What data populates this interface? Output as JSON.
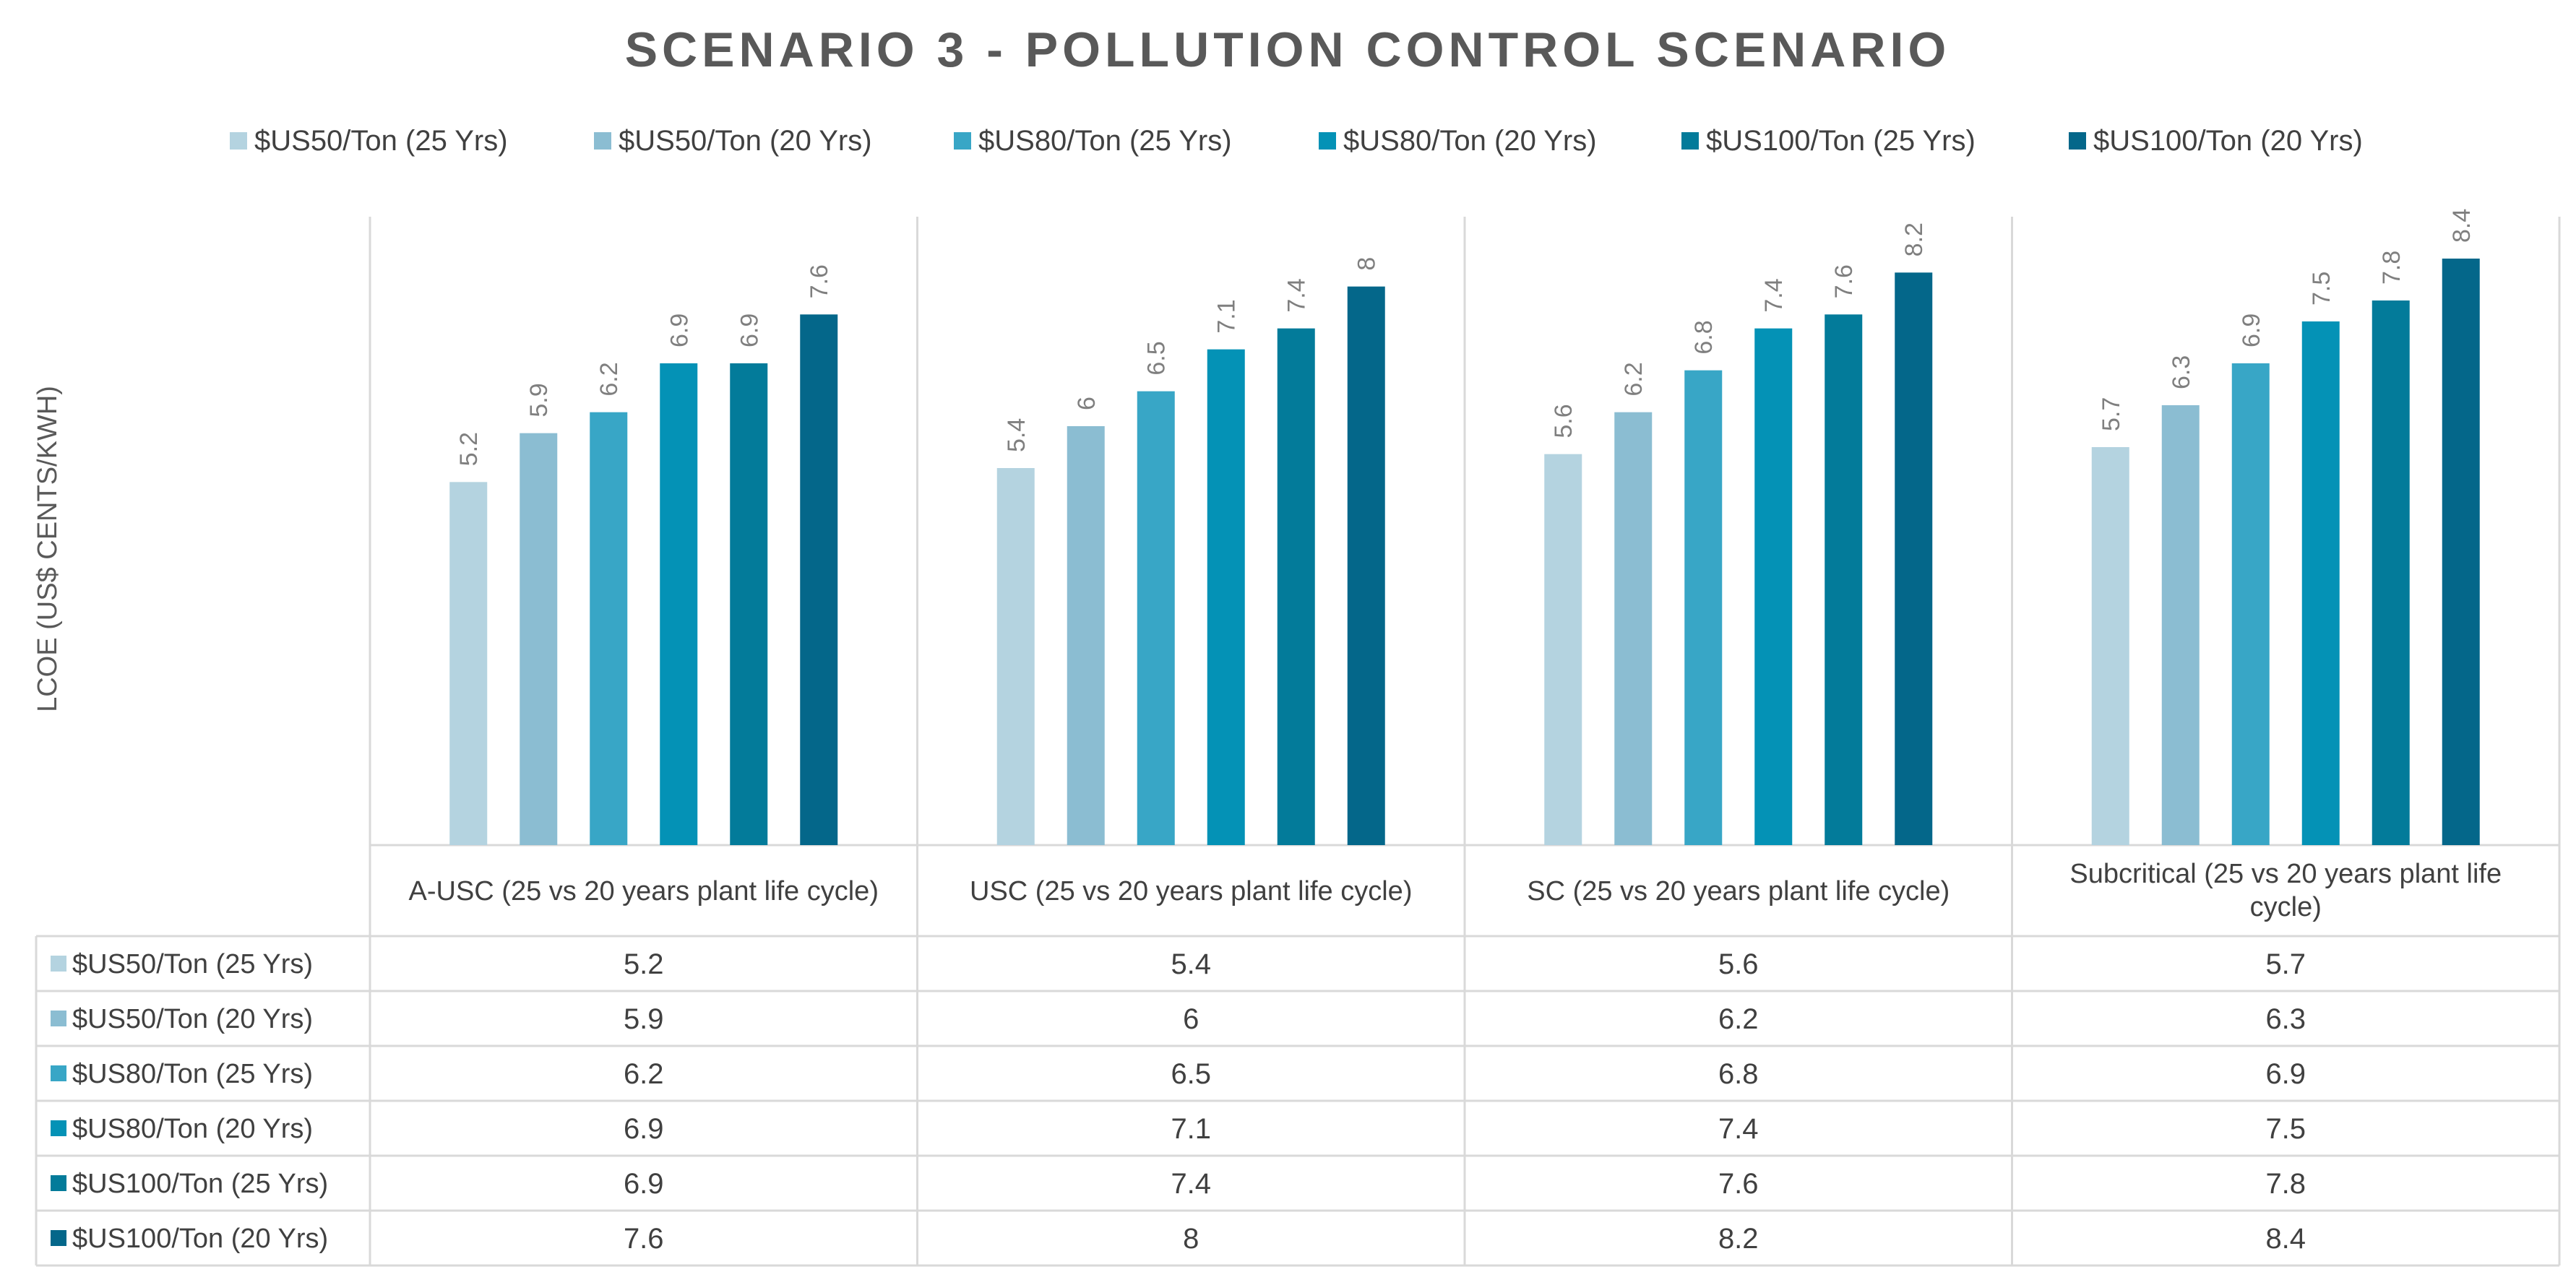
{
  "chart_data": {
    "type": "bar",
    "title": "SCENARIO 3 - POLLUTION CONTROL SCENARIO",
    "ylabel": "LCOE (US$ CENTS/KWH)",
    "xlabel": "",
    "ylim": [
      0,
      9
    ],
    "grid": false,
    "legend_position": "top",
    "categories": [
      "A-USC (25 vs 20 years plant life cycle)",
      "USC (25 vs 20 years plant life cycle)",
      "SC (25 vs 20 years plant life cycle)",
      "Subcritical (25 vs 20 years plant life cycle)"
    ],
    "series": [
      {
        "name": "$US50/Ton (25 Yrs)",
        "color": "#b4d3e0",
        "values": [
          5.2,
          5.4,
          5.6,
          5.7
        ]
      },
      {
        "name": "$US50/Ton (20 Yrs)",
        "color": "#8bbdd2",
        "values": [
          5.9,
          6,
          6.2,
          6.3
        ]
      },
      {
        "name": "$US80/Ton (25 Yrs)",
        "color": "#38a6c6",
        "values": [
          6.2,
          6.5,
          6.8,
          6.9
        ]
      },
      {
        "name": "$US80/Ton (20 Yrs)",
        "color": "#0492b6",
        "values": [
          6.9,
          7.1,
          7.4,
          7.5
        ]
      },
      {
        "name": "$US100/Ton (25 Yrs)",
        "color": "#037b9a",
        "values": [
          6.9,
          7.4,
          7.6,
          7.8
        ]
      },
      {
        "name": "$US100/Ton (20 Yrs)",
        "color": "#04678a",
        "values": [
          7.6,
          8,
          8.2,
          8.4
        ]
      }
    ],
    "has_data_table": true
  }
}
